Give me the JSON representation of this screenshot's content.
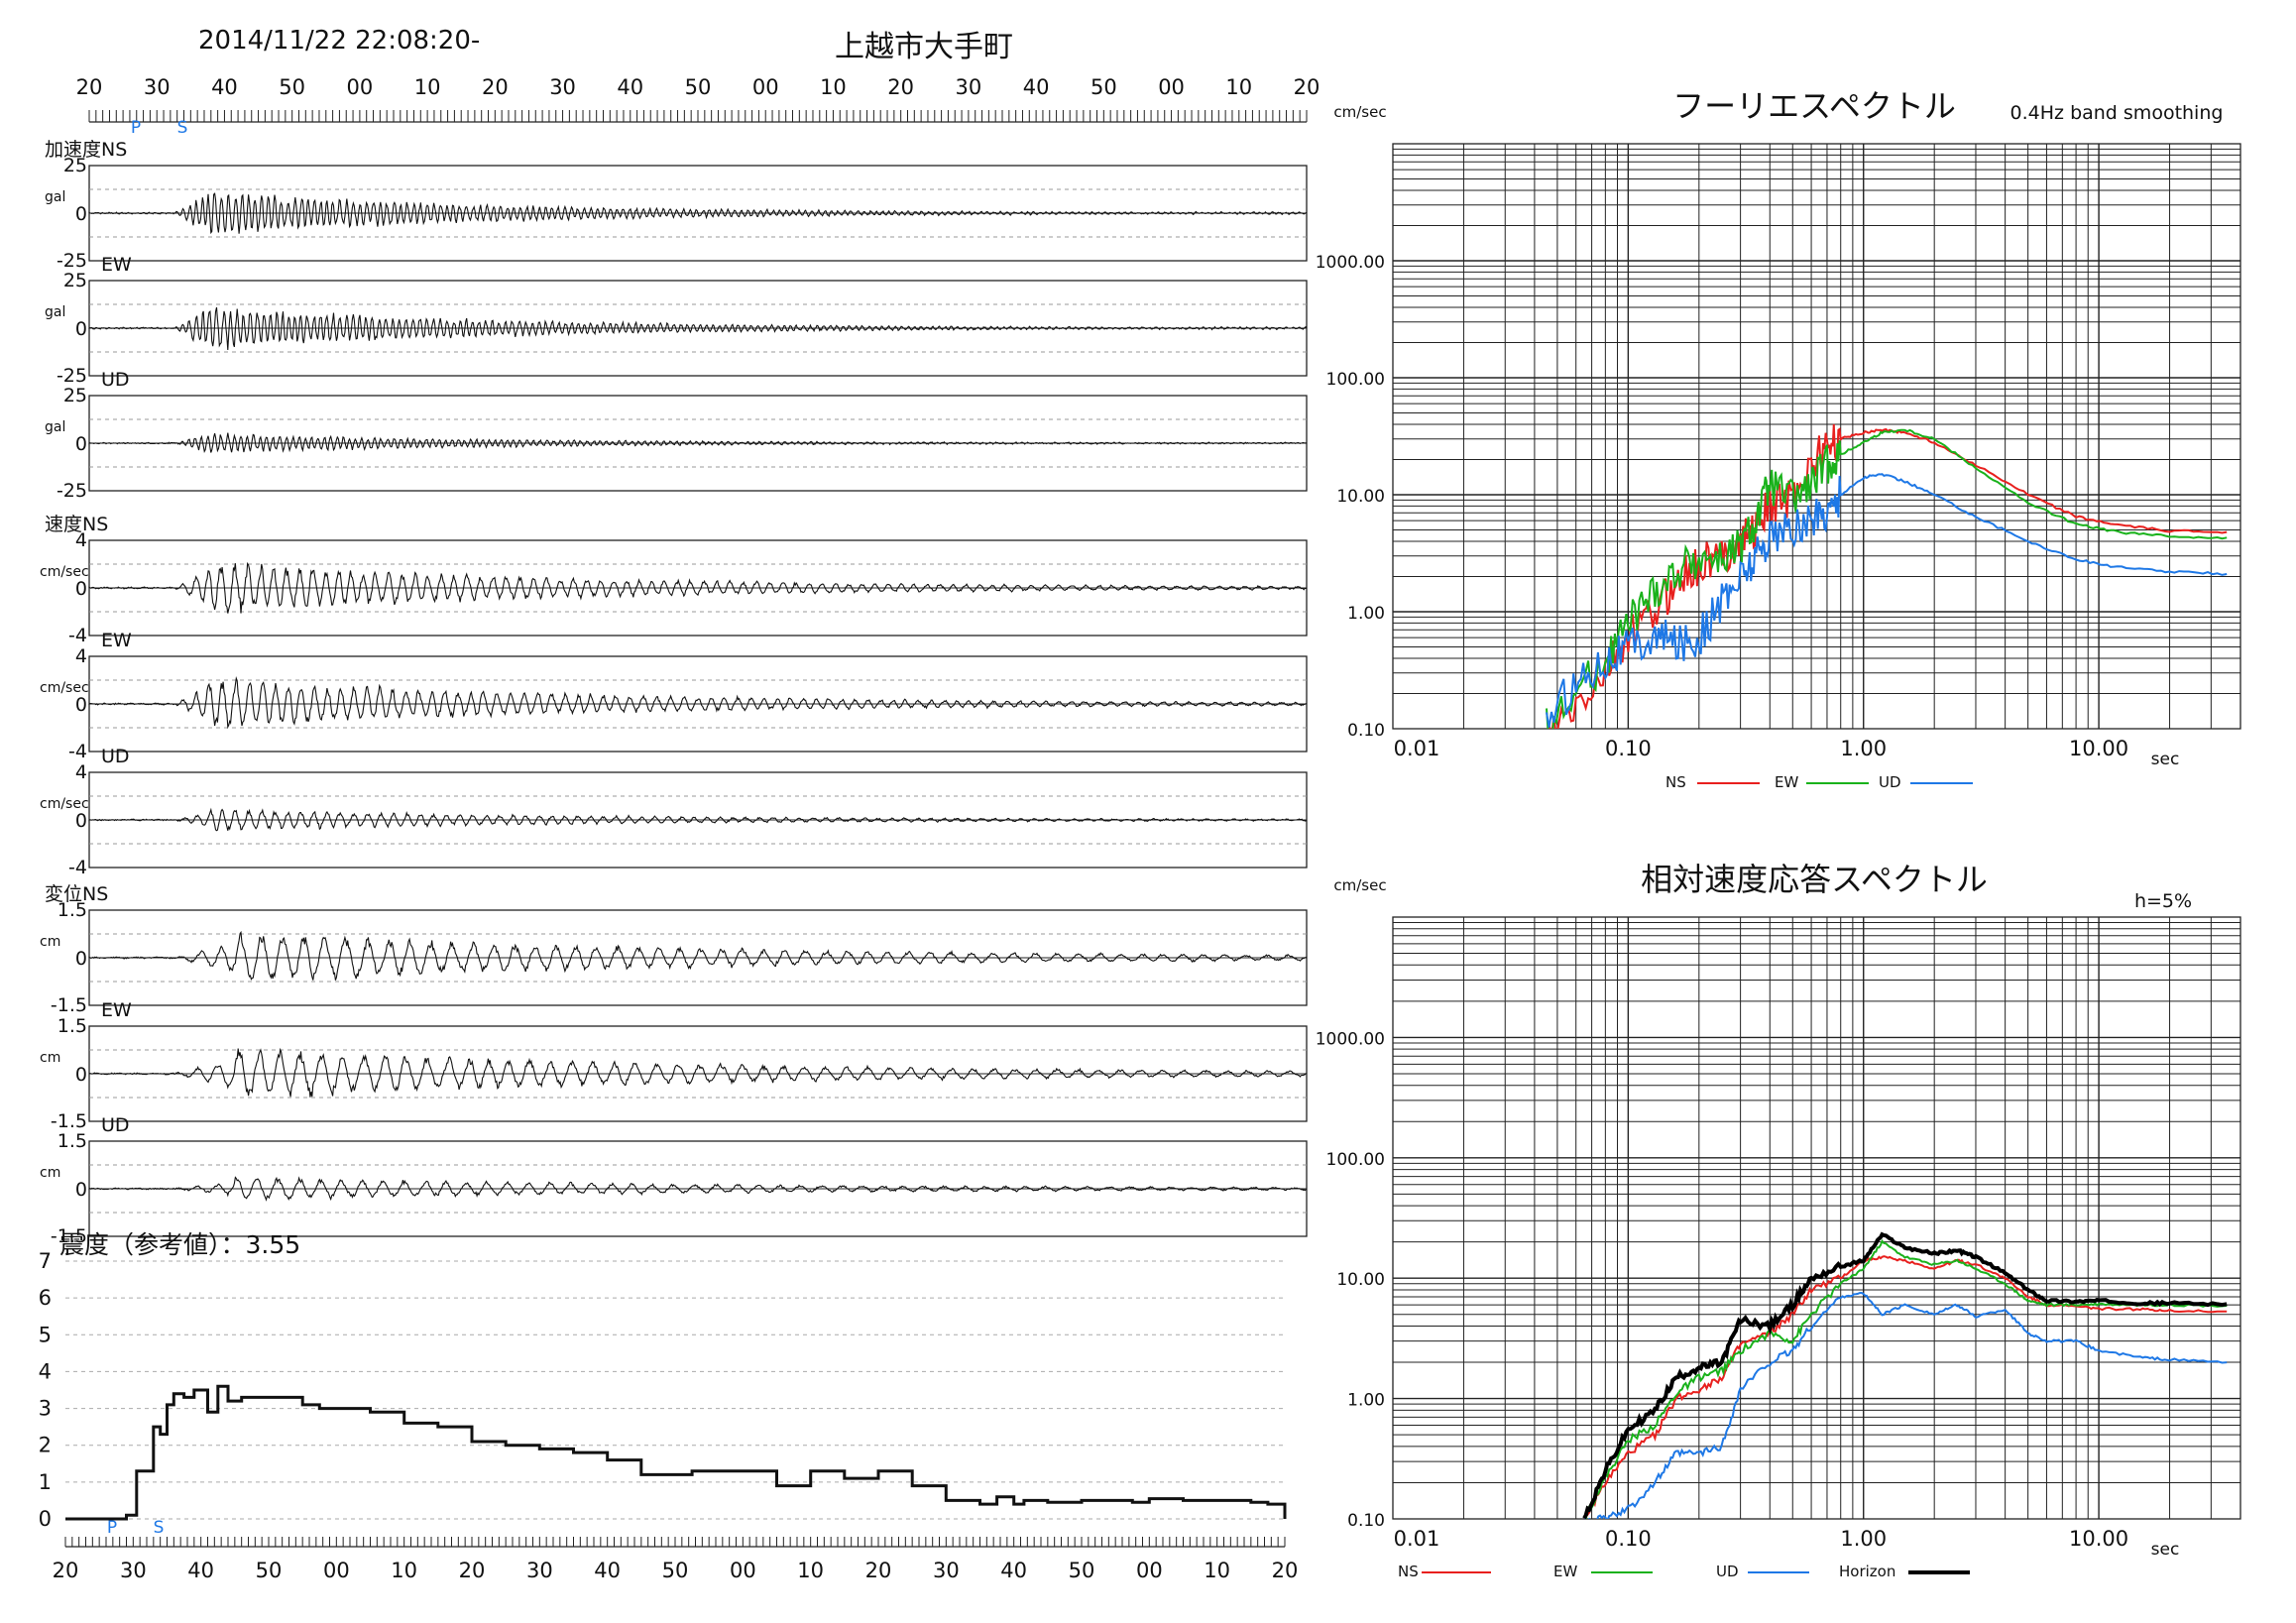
{
  "header": {
    "datetime": "2014/11/22 22:08:20-",
    "station": "上越市大手町",
    "time_ticks": [
      "20",
      "30",
      "40",
      "50",
      "00",
      "10",
      "20",
      "30",
      "40",
      "50",
      "00",
      "10",
      "20",
      "30",
      "40",
      "50",
      "00",
      "10",
      "20"
    ],
    "p_marker": "P",
    "s_marker": "S"
  },
  "waveforms": {
    "channels": [
      {
        "label": "加速度NS",
        "unit": "gal",
        "max_label": "25",
        "zero_label": "0",
        "min_label": "-25",
        "amp": 22,
        "seed": 11,
        "envelope": "acc"
      },
      {
        "label": "EW",
        "unit": "gal",
        "max_label": "25",
        "zero_label": "0",
        "min_label": "-25",
        "amp": 22,
        "seed": 23,
        "envelope": "acc"
      },
      {
        "label": "UD",
        "unit": "gal",
        "max_label": "25",
        "zero_label": "0",
        "min_label": "-25",
        "amp": 10,
        "seed": 37,
        "envelope": "acc"
      },
      {
        "label": "速度NS",
        "unit": "cm/sec",
        "max_label": "4",
        "zero_label": "0",
        "min_label": "-4",
        "amp": 24,
        "seed": 41,
        "envelope": "vel"
      },
      {
        "label": "EW",
        "unit": "cm/sec",
        "max_label": "4",
        "zero_label": "0",
        "min_label": "-4",
        "amp": 24,
        "seed": 53,
        "envelope": "vel"
      },
      {
        "label": "UD",
        "unit": "cm/sec",
        "max_label": "4",
        "zero_label": "0",
        "min_label": "-4",
        "amp": 10,
        "seed": 67,
        "envelope": "vel"
      },
      {
        "label": "変位NS",
        "unit": "cm",
        "max_label": "1.5",
        "zero_label": "0",
        "min_label": "-1.5",
        "amp": 22,
        "seed": 71,
        "envelope": "dis"
      },
      {
        "label": "EW",
        "unit": "cm",
        "max_label": "1.5",
        "zero_label": "0",
        "min_label": "-1.5",
        "amp": 22,
        "seed": 83,
        "envelope": "dis"
      },
      {
        "label": "UD",
        "unit": "cm",
        "max_label": "1.5",
        "zero_label": "0",
        "min_label": "-1.5",
        "amp": 10,
        "seed": 97,
        "envelope": "dis"
      }
    ]
  },
  "intensity": {
    "title": "震度（参考値）：3.55",
    "y_ticks": [
      "0",
      "1",
      "2",
      "3",
      "4",
      "5",
      "6",
      "7"
    ],
    "x_ticks": [
      "20",
      "30",
      "40",
      "50",
      "00",
      "10",
      "20",
      "30",
      "40",
      "50",
      "00",
      "10",
      "20",
      "30",
      "40",
      "50",
      "00",
      "10",
      "20"
    ],
    "p_marker": "P",
    "s_marker": "S"
  },
  "fourier": {
    "title": "フーリエスペクトル",
    "subtitle": "0.4Hz band smoothing",
    "yunit": "cm/sec",
    "xunit": "sec",
    "y_ticks": [
      "0.10",
      "1.00",
      "10.00",
      "100.00",
      "1000.00"
    ],
    "x_ticks": [
      "0.01",
      "0.10",
      "1.00",
      "10.00"
    ],
    "legend": [
      {
        "name": "NS",
        "color": "#e8201e"
      },
      {
        "name": "EW",
        "color": "#19b21b"
      },
      {
        "name": "UD",
        "color": "#1e78e6"
      }
    ]
  },
  "response": {
    "title": "相対速度応答スペクトル",
    "damping": "h=5%",
    "yunit": "cm/sec",
    "xunit": "sec",
    "y_ticks": [
      "0.10",
      "1.00",
      "10.00",
      "100.00",
      "1000.00"
    ],
    "x_ticks": [
      "0.01",
      "0.10",
      "1.00",
      "10.00"
    ],
    "legend": [
      {
        "name": "NS",
        "color": "#e8201e"
      },
      {
        "name": "EW",
        "color": "#19b21b"
      },
      {
        "name": "UD",
        "color": "#1e78e6"
      },
      {
        "name": "Horizon",
        "color": "#000000"
      }
    ]
  },
  "chart_data": [
    {
      "type": "line",
      "title": "震度（参考値）：3.55",
      "xlabel": "",
      "ylabel": "",
      "ylim": [
        0,
        7
      ],
      "grid": true,
      "series": [
        {
          "name": "",
          "x": [
            0,
            17,
            18,
            21,
            26,
            28,
            30,
            32,
            35,
            38,
            42,
            45,
            48,
            52,
            55,
            60,
            65,
            70,
            75,
            80,
            90,
            100,
            110,
            120,
            130,
            140,
            150,
            160,
            170,
            175,
            180,
            185,
            190,
            200,
            210,
            220,
            230,
            240,
            250,
            260,
            270,
            275,
            280,
            283,
            290,
            300,
            305,
            310,
            315,
            320,
            330,
            340,
            350,
            355,
            360
          ],
          "values": [
            0,
            0,
            0.1,
            1.3,
            2.5,
            2.3,
            3.1,
            3.4,
            3.3,
            3.5,
            2.9,
            3.6,
            3.2,
            3.3,
            3.3,
            3.3,
            3.3,
            3.1,
            3.0,
            3.0,
            2.9,
            2.6,
            2.5,
            2.1,
            2.0,
            1.9,
            1.8,
            1.6,
            1.2,
            1.2,
            1.2,
            1.3,
            1.3,
            1.3,
            0.9,
            1.3,
            1.1,
            1.3,
            0.9,
            0.5,
            0.4,
            0.6,
            0.4,
            0.5,
            0.45,
            0.5,
            0.5,
            0.5,
            0.45,
            0.55,
            0.5,
            0.5,
            0.45,
            0.4,
            0.0
          ]
        }
      ]
    },
    {
      "type": "line",
      "title": "フーリエスペクトル",
      "subtitle": "0.4Hz band smoothing",
      "xscale": "log",
      "yscale": "log",
      "xlim": [
        0.01,
        40
      ],
      "ylim": [
        0.1,
        10000
      ],
      "xlabel": "sec",
      "ylabel": "cm/sec",
      "grid": true,
      "legend": "bottom",
      "series": [
        {
          "name": "NS",
          "color": "#e8201e",
          "x": [
            0.045,
            0.06,
            0.08,
            0.1,
            0.13,
            0.16,
            0.2,
            0.25,
            0.3,
            0.35,
            0.4,
            0.5,
            0.6,
            0.7,
            0.8,
            1.0,
            1.2,
            1.5,
            2.0,
            3.0,
            5.0,
            8.0,
            12.0,
            20.0,
            35.0
          ],
          "y": [
            0.08,
            0.15,
            0.3,
            0.6,
            1.0,
            1.8,
            2.5,
            3.0,
            4.0,
            5.5,
            8.0,
            10.0,
            18.0,
            26.0,
            30.0,
            34.0,
            36.0,
            34.0,
            28.0,
            18.0,
            10.0,
            6.5,
            5.5,
            4.9,
            4.8
          ]
        },
        {
          "name": "EW",
          "color": "#19b21b",
          "x": [
            0.045,
            0.06,
            0.08,
            0.1,
            0.13,
            0.16,
            0.2,
            0.25,
            0.3,
            0.35,
            0.4,
            0.5,
            0.6,
            0.7,
            0.8,
            1.0,
            1.2,
            1.5,
            2.0,
            3.0,
            5.0,
            8.0,
            12.0,
            20.0,
            35.0
          ],
          "y": [
            0.1,
            0.2,
            0.4,
            0.8,
            1.5,
            2.2,
            3.0,
            2.8,
            3.5,
            6.0,
            12.0,
            9.0,
            12.0,
            18.0,
            22.0,
            28.0,
            34.0,
            36.0,
            30.0,
            17.0,
            8.5,
            5.6,
            4.8,
            4.4,
            4.3
          ]
        },
        {
          "name": "UD",
          "color": "#1e78e6",
          "x": [
            0.045,
            0.06,
            0.08,
            0.1,
            0.13,
            0.16,
            0.2,
            0.25,
            0.3,
            0.35,
            0.4,
            0.5,
            0.6,
            0.7,
            0.8,
            1.0,
            1.2,
            1.5,
            2.0,
            3.0,
            5.0,
            8.0,
            12.0,
            20.0,
            35.0
          ],
          "y": [
            0.12,
            0.25,
            0.4,
            0.5,
            0.6,
            0.55,
            0.6,
            1.2,
            2.0,
            3.0,
            4.5,
            5.0,
            6.0,
            7.5,
            10.0,
            14.0,
            15.0,
            13.0,
            10.0,
            6.5,
            4.0,
            2.8,
            2.4,
            2.2,
            2.1
          ]
        }
      ]
    },
    {
      "type": "line",
      "title": "相対速度応答スペクトル",
      "subtitle": "h=5%",
      "xscale": "log",
      "yscale": "log",
      "xlim": [
        0.01,
        40
      ],
      "ylim": [
        0.1,
        10000
      ],
      "xlabel": "sec",
      "ylabel": "cm/sec",
      "grid": true,
      "legend": "bottom",
      "series": [
        {
          "name": "NS",
          "color": "#e8201e",
          "x": [
            0.065,
            0.08,
            0.1,
            0.13,
            0.16,
            0.2,
            0.25,
            0.3,
            0.4,
            0.5,
            0.6,
            0.8,
            1.0,
            1.2,
            1.5,
            2.0,
            2.5,
            3.0,
            4.0,
            5.0,
            6.0,
            8.0,
            10.0,
            15.0,
            20.0,
            35.0
          ],
          "y": [
            0.1,
            0.2,
            0.35,
            0.5,
            1.0,
            1.2,
            1.5,
            2.8,
            3.5,
            5.0,
            8.0,
            10.0,
            14.0,
            15.0,
            14.0,
            12.0,
            14.0,
            13.0,
            10.0,
            7.0,
            6.0,
            5.8,
            5.6,
            5.5,
            5.4,
            5.3
          ]
        },
        {
          "name": "EW",
          "color": "#19b21b",
          "x": [
            0.065,
            0.08,
            0.1,
            0.13,
            0.16,
            0.2,
            0.25,
            0.3,
            0.4,
            0.5,
            0.6,
            0.8,
            1.0,
            1.2,
            1.5,
            2.0,
            2.5,
            3.0,
            4.0,
            5.0,
            6.0,
            8.0,
            10.0,
            15.0,
            20.0,
            35.0
          ],
          "y": [
            0.1,
            0.22,
            0.45,
            0.6,
            1.1,
            1.5,
            1.7,
            2.5,
            3.5,
            3.0,
            5.0,
            9.0,
            12.0,
            20.0,
            15.0,
            13.0,
            14.0,
            12.0,
            9.0,
            6.5,
            6.0,
            6.0,
            6.1,
            6.0,
            6.0,
            5.9
          ]
        },
        {
          "name": "UD",
          "color": "#1e78e6",
          "x": [
            0.065,
            0.08,
            0.1,
            0.13,
            0.16,
            0.2,
            0.25,
            0.3,
            0.4,
            0.5,
            0.6,
            0.8,
            1.0,
            1.2,
            1.5,
            2.0,
            2.5,
            3.0,
            4.0,
            5.0,
            6.0,
            8.0,
            10.0,
            15.0,
            20.0,
            35.0
          ],
          "y": [
            0.1,
            0.1,
            0.12,
            0.2,
            0.35,
            0.35,
            0.4,
            1.2,
            2.0,
            2.5,
            4.0,
            7.0,
            7.5,
            5.0,
            6.0,
            5.0,
            6.0,
            4.8,
            5.5,
            3.5,
            3.0,
            3.0,
            2.5,
            2.2,
            2.1,
            2.0
          ]
        },
        {
          "name": "Horizon",
          "color": "#000000",
          "x": [
            0.065,
            0.08,
            0.1,
            0.13,
            0.16,
            0.2,
            0.25,
            0.3,
            0.4,
            0.5,
            0.6,
            0.8,
            1.0,
            1.2,
            1.5,
            2.0,
            2.5,
            3.0,
            4.0,
            5.0,
            6.0,
            8.0,
            10.0,
            15.0,
            20.0,
            35.0
          ],
          "y": [
            0.1,
            0.25,
            0.55,
            0.8,
            1.5,
            1.8,
            2.0,
            4.5,
            4.0,
            6.0,
            10.0,
            12.5,
            14.0,
            23.0,
            18.0,
            16.0,
            17.0,
            15.0,
            11.0,
            8.0,
            6.5,
            6.4,
            6.5,
            6.2,
            6.2,
            6.1
          ]
        }
      ]
    }
  ]
}
